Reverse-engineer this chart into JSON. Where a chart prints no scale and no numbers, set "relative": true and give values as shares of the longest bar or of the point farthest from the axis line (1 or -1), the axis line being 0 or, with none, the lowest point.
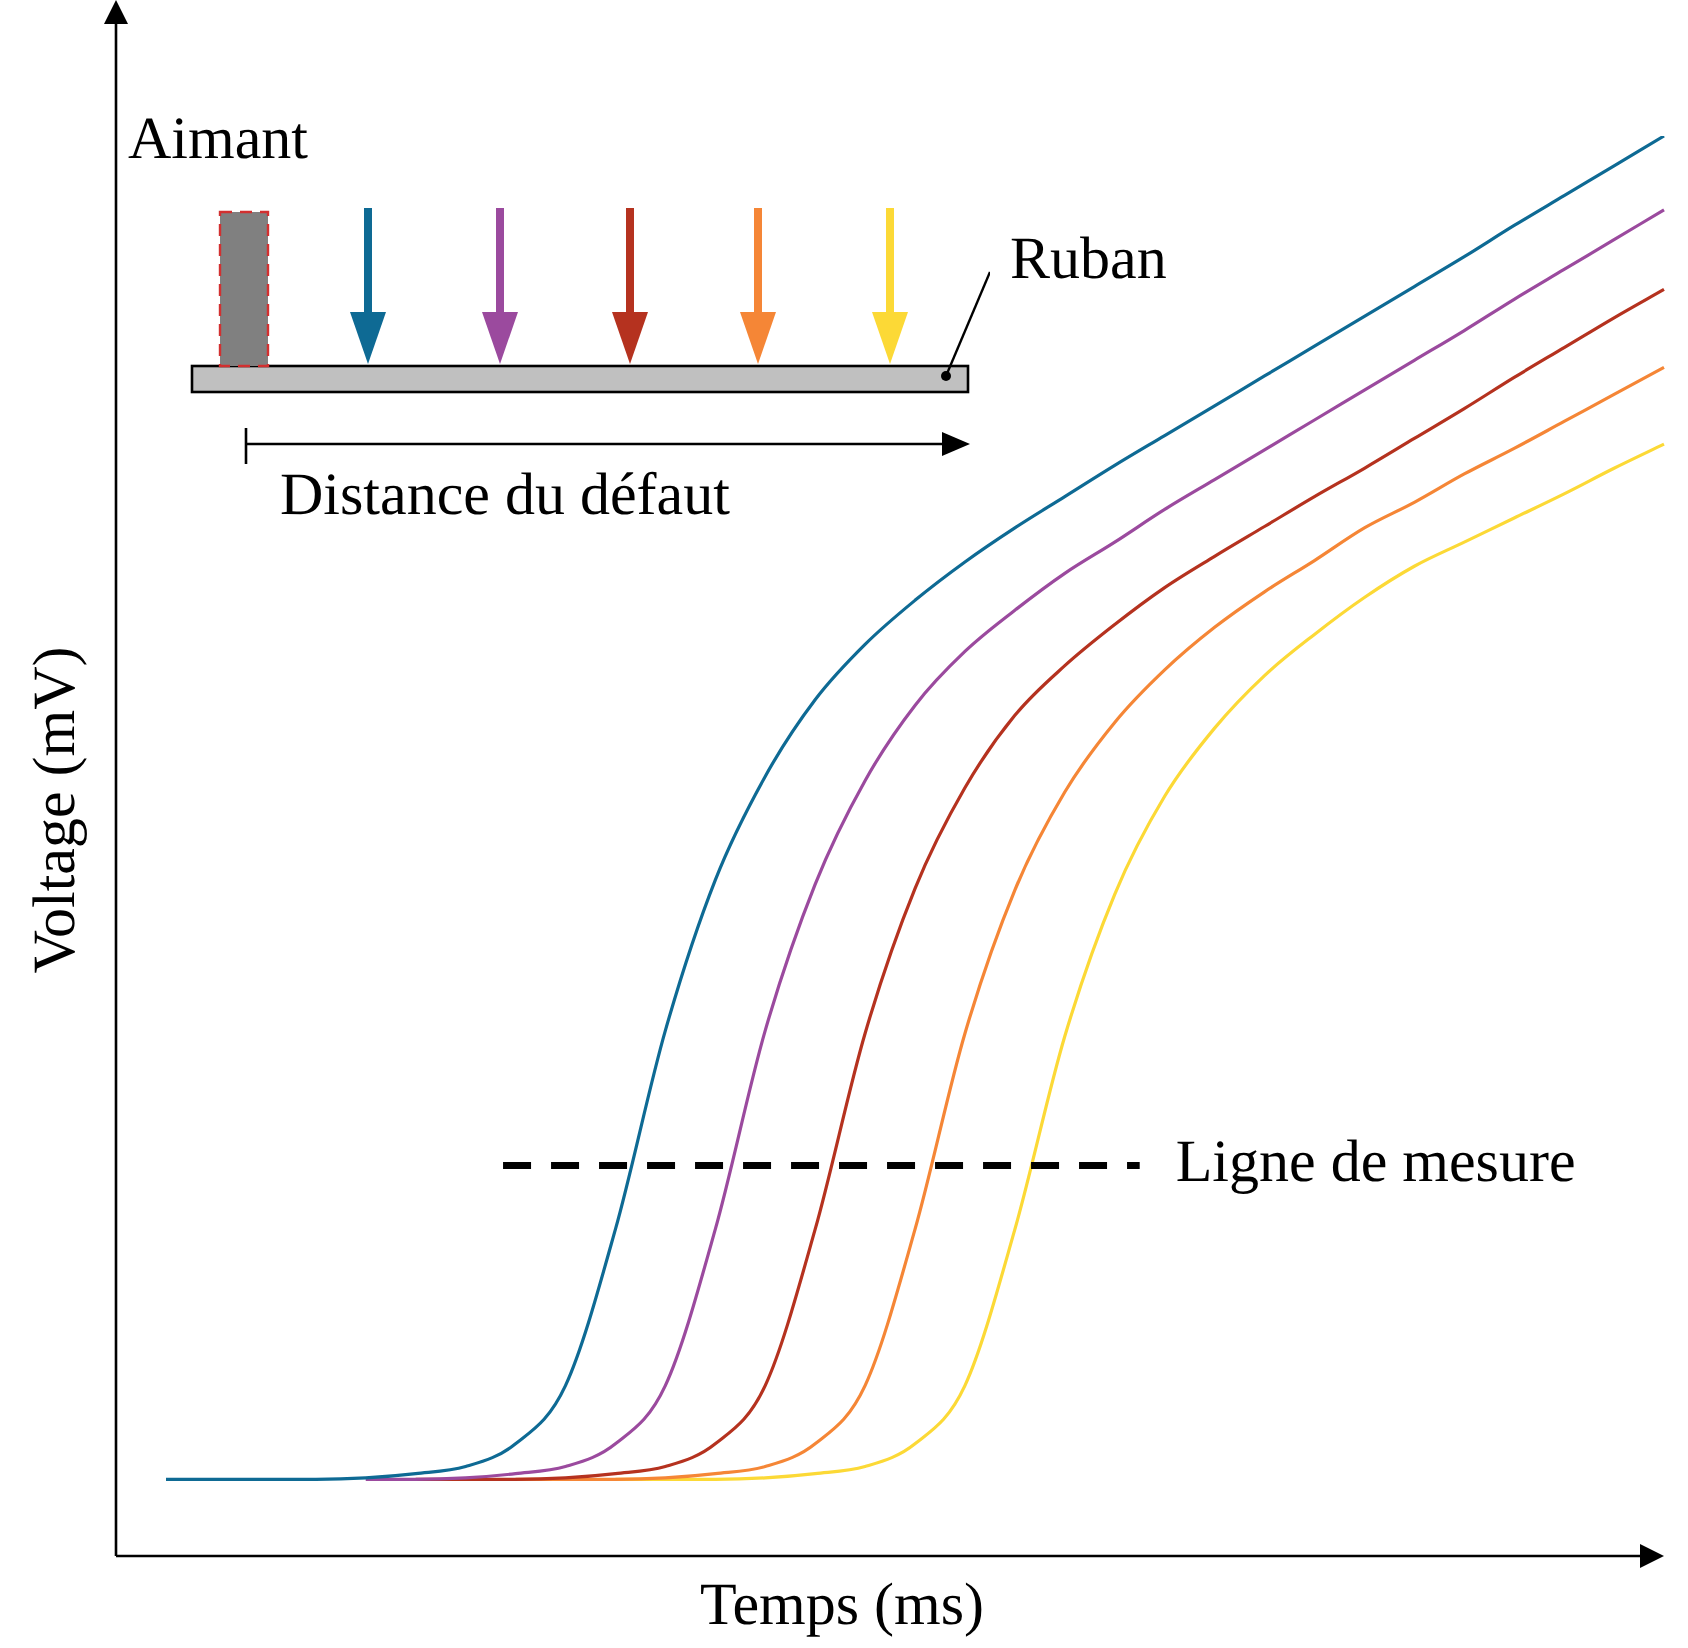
{
  "chart_data": {
    "type": "line",
    "relative": true,
    "xlabel": "Temps (ms)",
    "ylabel": "Voltage (mV)",
    "legend": false,
    "marker": "none",
    "categories": [
      null,
      null,
      null,
      null,
      null,
      null,
      null,
      null,
      null,
      null,
      null,
      null,
      null,
      null,
      null,
      null,
      null,
      null,
      null,
      null,
      null,
      null,
      null,
      null,
      null,
      null,
      null,
      null,
      null,
      null,
      null
    ],
    "series": [
      {
        "color": "#0e6a94",
        "values": [
          0.054,
          0.054,
          0.054,
          0.054,
          0.055,
          0.058,
          0.063,
          0.079,
          0.12,
          0.23,
          0.37,
          0.476,
          0.549,
          0.603,
          0.642,
          0.673,
          0.7,
          0.724,
          0.746,
          0.768,
          0.789,
          0.81,
          0.831,
          0.852,
          0.873,
          0.894,
          0.915,
          0.937,
          0.958,
          0.979,
          1
        ]
      },
      {
        "color": "#9b4a9e",
        "values": [
          null,
          null,
          null,
          null,
          0.054,
          0.054,
          0.055,
          0.058,
          0.063,
          0.079,
          0.12,
          0.23,
          0.37,
          0.473,
          0.546,
          0.599,
          0.637,
          0.666,
          0.692,
          0.714,
          0.737,
          0.758,
          0.779,
          0.8,
          0.821,
          0.842,
          0.863,
          0.885,
          0.906,
          0.927,
          0.948
        ]
      },
      {
        "color": "#b5321f",
        "values": [
          null,
          null,
          null,
          null,
          null,
          0.054,
          0.054,
          0.054,
          0.055,
          0.058,
          0.063,
          0.079,
          0.12,
          0.23,
          0.368,
          0.47,
          0.541,
          0.592,
          0.627,
          0.656,
          0.682,
          0.704,
          0.725,
          0.746,
          0.766,
          0.787,
          0.808,
          0.83,
          0.851,
          0.872,
          0.892
        ]
      },
      {
        "color": "#f58636",
        "values": [
          null,
          null,
          null,
          null,
          null,
          null,
          null,
          0.054,
          0.054,
          0.054,
          0.055,
          0.058,
          0.063,
          0.079,
          0.12,
          0.23,
          0.368,
          0.469,
          0.538,
          0.587,
          0.624,
          0.654,
          0.679,
          0.701,
          0.724,
          0.742,
          0.762,
          0.78,
          0.799,
          0.818,
          0.837
        ]
      },
      {
        "color": "#fcd936",
        "values": [
          null,
          null,
          null,
          null,
          null,
          null,
          null,
          null,
          null,
          0.054,
          0.054,
          0.054,
          0.055,
          0.058,
          0.063,
          0.079,
          0.12,
          0.23,
          0.366,
          0.466,
          0.535,
          0.583,
          0.62,
          0.649,
          0.675,
          0.697,
          0.714,
          0.731,
          0.748,
          0.766,
          0.783
        ]
      }
    ],
    "ref_lines": [
      {
        "axis": "y",
        "value": 0.275,
        "label": "Ligne de mesure",
        "color": "#000000",
        "line_style": "dashed"
      }
    ],
    "annotations": [
      "Aimant",
      "Ruban",
      "Distance du défaut"
    ]
  }
}
